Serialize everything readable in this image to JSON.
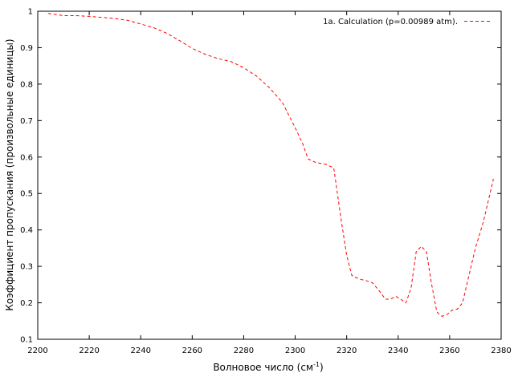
{
  "chart_data": {
    "type": "line",
    "xlabel": "Волновое число (см",
    "xlabel_sup": "-1",
    "xlabel_end": ")",
    "ylabel": "Коэффициент пропускания (произвольные единицы)",
    "xlim": [
      2200,
      2380
    ],
    "ylim": [
      0.1,
      1
    ],
    "x_ticks": [
      2200,
      2220,
      2240,
      2260,
      2280,
      2300,
      2320,
      2340,
      2360,
      2380
    ],
    "y_ticks": [
      0.1,
      0.2,
      0.3,
      0.4,
      0.5,
      0.6,
      0.7,
      0.8,
      0.9,
      1
    ],
    "grid": false,
    "legend_position": "top-right",
    "series": [
      {
        "name": "1a. Calculation (p=0.00989 atm).",
        "color": "#ff0000",
        "style": "dashed",
        "x": [
          2204,
          2210,
          2215,
          2220,
          2225,
          2230,
          2235,
          2240,
          2245,
          2250,
          2255,
          2260,
          2265,
          2270,
          2275,
          2280,
          2285,
          2290,
          2295,
          2300,
          2303,
          2305,
          2308,
          2312,
          2315,
          2318,
          2320,
          2322,
          2325,
          2328,
          2330,
          2333,
          2335,
          2337,
          2339,
          2341,
          2343,
          2345,
          2347,
          2349,
          2351,
          2353,
          2355,
          2357,
          2359,
          2361,
          2363,
          2365,
          2368,
          2370,
          2373,
          2377
        ],
        "y": [
          0.994,
          0.988,
          0.988,
          0.986,
          0.983,
          0.98,
          0.975,
          0.965,
          0.955,
          0.94,
          0.92,
          0.898,
          0.882,
          0.87,
          0.862,
          0.845,
          0.822,
          0.79,
          0.75,
          0.68,
          0.635,
          0.595,
          0.585,
          0.58,
          0.57,
          0.42,
          0.33,
          0.275,
          0.265,
          0.26,
          0.255,
          0.23,
          0.21,
          0.21,
          0.218,
          0.21,
          0.2,
          0.24,
          0.34,
          0.355,
          0.34,
          0.25,
          0.175,
          0.163,
          0.168,
          0.18,
          0.183,
          0.2,
          0.29,
          0.35,
          0.42,
          0.54
        ]
      }
    ]
  }
}
